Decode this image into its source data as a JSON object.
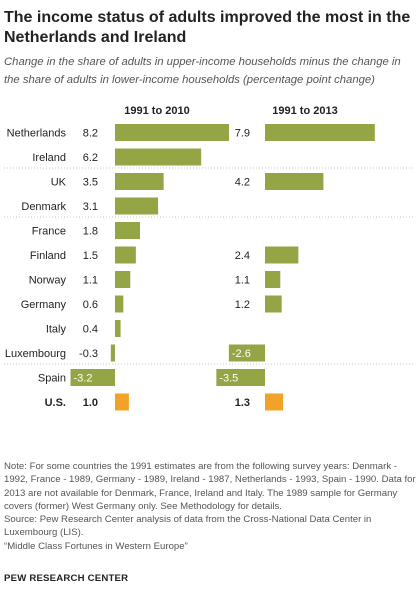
{
  "title": "The income status of adults improved the most in the Netherlands and Ireland",
  "subtitle": "Change in the share of adults in upper-income households minus the change in the share of adults in lower-income households (percentage point change)",
  "chart_data": {
    "type": "bar",
    "categories": [
      "Netherlands",
      "Ireland",
      "UK",
      "Denmark",
      "France",
      "Finland",
      "Norway",
      "Germany",
      "Italy",
      "Luxembourg",
      "Spain",
      "U.S."
    ],
    "series": [
      {
        "name": "1991 to 2010",
        "values": [
          8.2,
          6.2,
          3.5,
          3.1,
          1.8,
          1.5,
          1.1,
          0.6,
          0.4,
          -0.3,
          -3.2,
          1.0
        ],
        "labels": [
          "8.2",
          "6.2",
          "3.5",
          "3.1",
          "1.8",
          "1.5",
          "1.1",
          "0.6",
          "0.4",
          "-0.3",
          "-3.2",
          "1.0"
        ]
      },
      {
        "name": "1991 to 2013",
        "values": [
          7.9,
          null,
          4.2,
          null,
          null,
          2.4,
          1.1,
          1.2,
          null,
          -2.6,
          -3.5,
          1.3
        ],
        "labels": [
          "7.9",
          "",
          "4.2",
          "",
          "",
          "2.4",
          "1.1",
          "1.2",
          "",
          "-2.6",
          "-3.5",
          "1.3"
        ]
      }
    ],
    "highlight_category": "U.S.",
    "colors": {
      "bar": "#94a545",
      "highlight": "#f0a327",
      "separator": "#c8c8c8"
    }
  },
  "footer": {
    "note": "Note: For some countries the 1991 estimates are from the following survey years: Denmark - 1992, France - 1989, Germany - 1989, Ireland - 1987, Netherlands - 1993, Spain - 1990. Data for 2013 are not available for Denmark, France, Ireland and Italy. The 1989 sample for Germany covers (former) West Germany only. See Methodology for details.",
    "source": "Source: Pew Research Center analysis of data from the Cross-National Data Center in Luxembourg (LIS).",
    "report": "“Middle Class Fortunes in Western Europe”",
    "brand": "PEW RESEARCH CENTER"
  }
}
